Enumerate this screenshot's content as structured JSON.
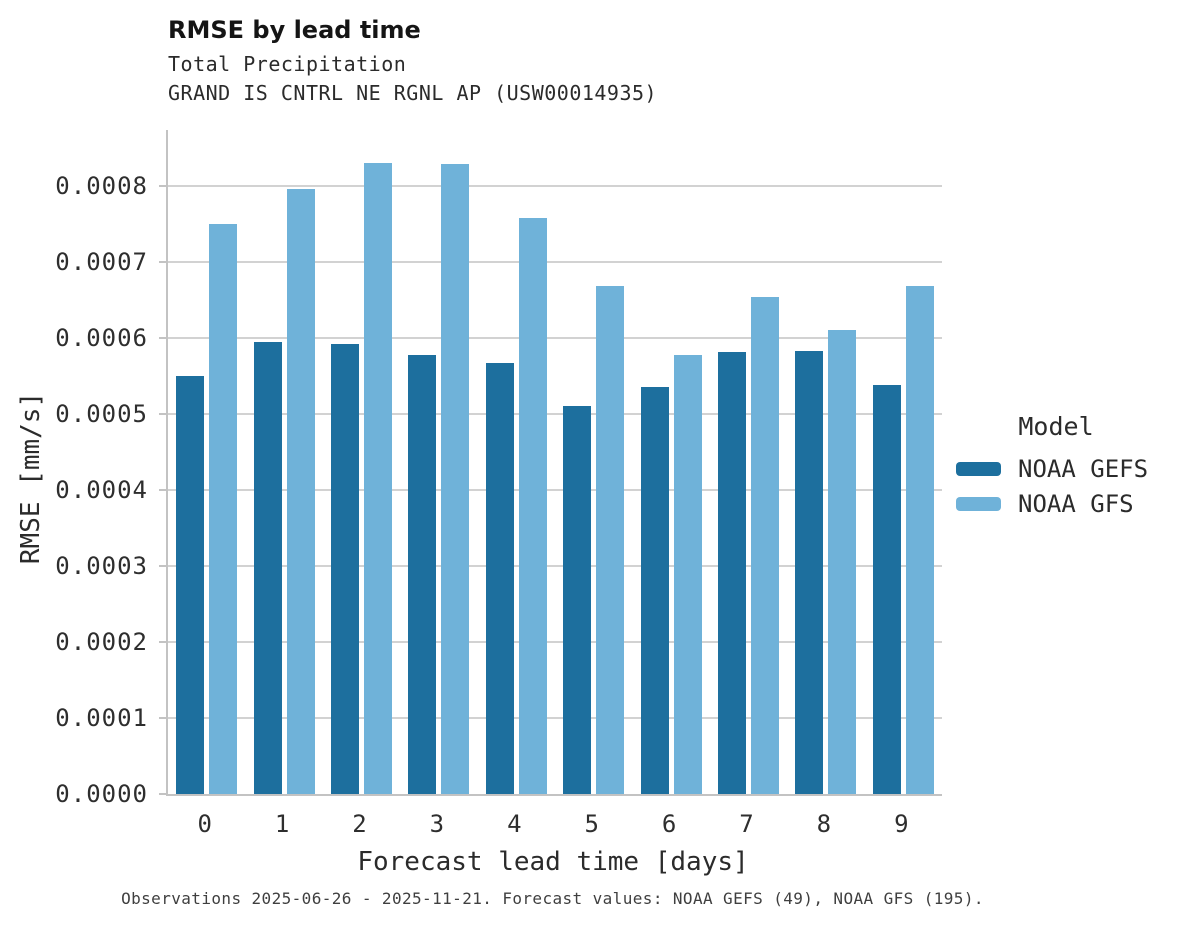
{
  "chart_data": {
    "type": "bar",
    "title": "RMSE by lead time",
    "subtitle1": "Total Precipitation",
    "subtitle2": "GRAND IS CNTRL NE RGNL AP (USW00014935)",
    "xlabel": "Forecast lead time [days]",
    "ylabel": "RMSE [mm/s]",
    "categories": [
      "0",
      "1",
      "2",
      "3",
      "4",
      "5",
      "6",
      "7",
      "8",
      "9"
    ],
    "series": [
      {
        "name": "NOAA GEFS",
        "color": "#1d6f9e",
        "values": [
          0.00055,
          0.000595,
          0.000592,
          0.000578,
          0.000567,
          0.000511,
          0.000535,
          0.000581,
          0.000583,
          0.000538
        ]
      },
      {
        "name": "NOAA GFS",
        "color": "#6fb2d9",
        "values": [
          0.00075,
          0.000796,
          0.00083,
          0.000829,
          0.000758,
          0.000668,
          0.000578,
          0.000654,
          0.000611,
          0.000669
        ]
      }
    ],
    "y_ticks": [
      "0.0000",
      "0.0001",
      "0.0002",
      "0.0003",
      "0.0004",
      "0.0005",
      "0.0006",
      "0.0007",
      "0.0008"
    ],
    "y_tick_step": 0.0001,
    "ylim": [
      0,
      0.000874
    ],
    "grid": "horizontal",
    "grid_color": "#d2d2d2",
    "axis_color": "#c3c3c3",
    "legend_title": "Model",
    "legend_position": "right"
  },
  "footer": "Observations 2025-06-26 - 2025-11-21. Forecast values: NOAA GEFS (49), NOAA GFS (195)."
}
